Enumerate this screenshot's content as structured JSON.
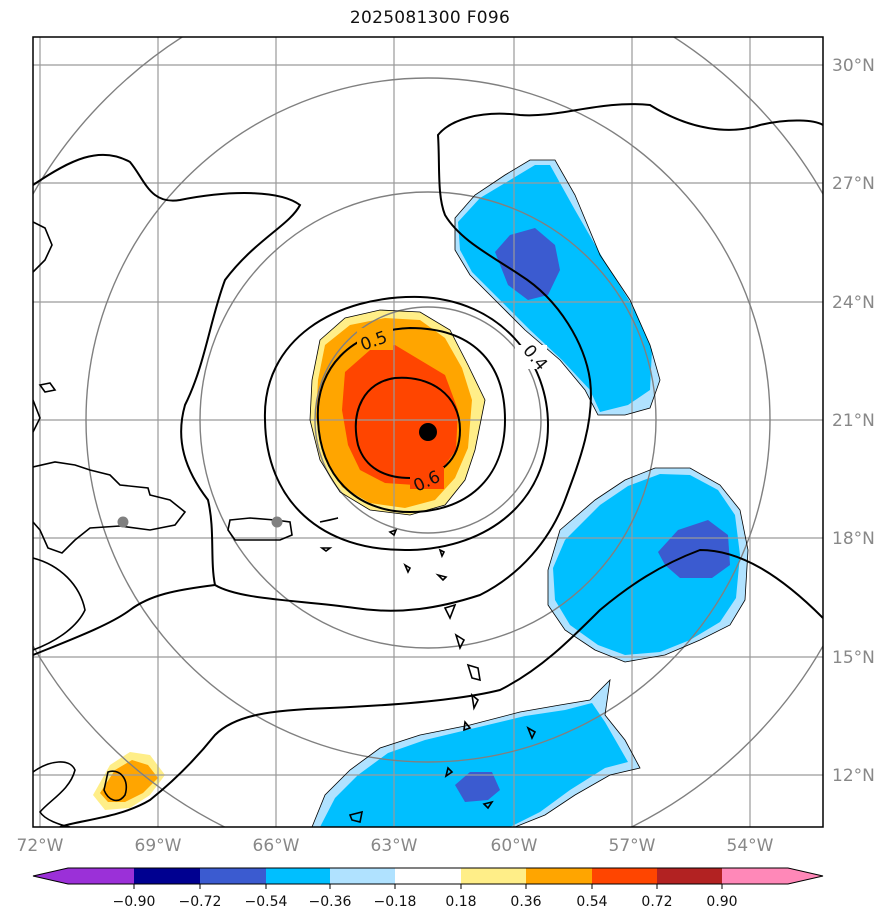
{
  "title": "2025081300 F096",
  "map": {
    "lon_labels": [
      "72°W",
      "69°W",
      "66°W",
      "63°W",
      "60°W",
      "57°W",
      "54°W"
    ],
    "lat_labels": [
      "30°N",
      "27°N",
      "24°N",
      "21°N",
      "18°N",
      "15°N",
      "12°N"
    ],
    "contour_labels": [
      "0.5",
      "0.4",
      "0.6"
    ],
    "storm_center": {
      "lon": "62.3°W",
      "lat": "20.7°N"
    }
  },
  "colorbar": {
    "ticks": [
      "−0.90",
      "−0.72",
      "−0.54",
      "−0.36",
      "−0.18",
      "0.18",
      "0.36",
      "0.54",
      "0.72",
      "0.90"
    ],
    "colors": [
      "#9b30d8",
      "#000090",
      "#3b5bd0",
      "#00bfff",
      "#b0e2ff",
      "#ffffff",
      "#ffee88",
      "#ffa500",
      "#ff4500",
      "#b22222",
      "#ff88b8"
    ]
  },
  "colors": {
    "orange_dark": "#ff4500",
    "orange": "#ffa500",
    "yellow": "#ffee88",
    "cyan": "#00bfff",
    "light_blue": "#b0e2ff",
    "blue": "#3b5bd0",
    "grid": "#888888"
  }
}
